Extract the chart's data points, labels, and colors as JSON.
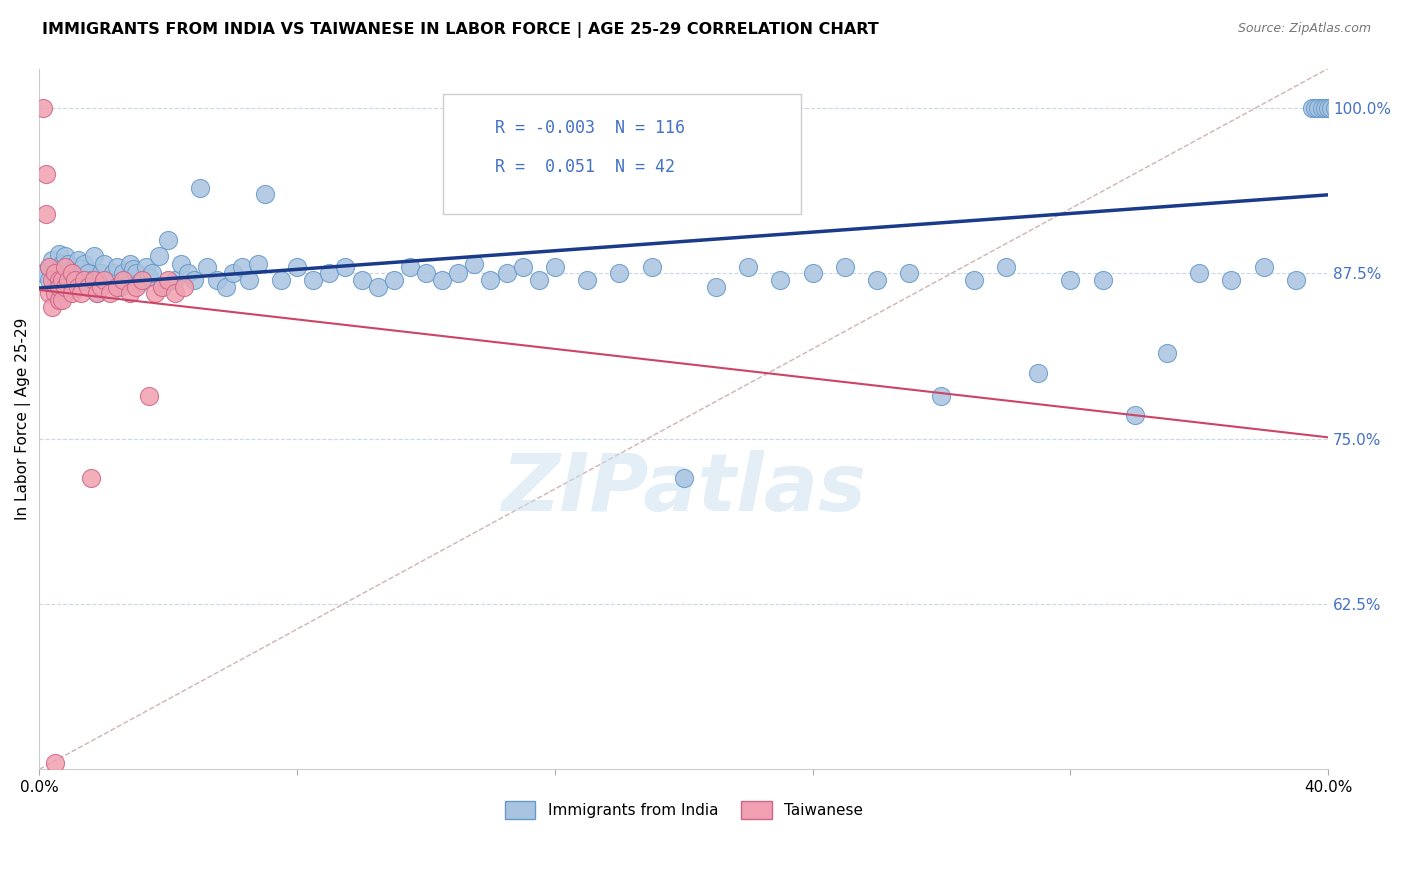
{
  "title": "IMMIGRANTS FROM INDIA VS TAIWANESE IN LABOR FORCE | AGE 25-29 CORRELATION CHART",
  "source": "Source: ZipAtlas.com",
  "ylabel": "In Labor Force | Age 25-29",
  "xlim": [
    0.0,
    0.4
  ],
  "ylim": [
    0.5,
    1.03
  ],
  "yticks": [
    0.625,
    0.75,
    0.875,
    1.0
  ],
  "ytick_labels": [
    "62.5%",
    "75.0%",
    "87.5%",
    "100.0%"
  ],
  "india_R": -0.003,
  "india_N": 116,
  "taiwan_R": 0.051,
  "taiwan_N": 42,
  "india_color": "#a8c4e0",
  "india_edge_color": "#6699cc",
  "taiwan_color": "#f0a0b0",
  "taiwan_edge_color": "#cc6688",
  "india_line_color": "#1a3a8a",
  "taiwan_line_color": "#cc4466",
  "diagonal_color": "#ccaaaa",
  "watermark": "ZIPatlas",
  "india_x": [
    0.001,
    0.003,
    0.003,
    0.004,
    0.005,
    0.005,
    0.006,
    0.006,
    0.007,
    0.007,
    0.008,
    0.008,
    0.008,
    0.009,
    0.009,
    0.01,
    0.01,
    0.011,
    0.011,
    0.012,
    0.012,
    0.013,
    0.013,
    0.014,
    0.015,
    0.016,
    0.017,
    0.018,
    0.019,
    0.02,
    0.022,
    0.023,
    0.024,
    0.025,
    0.026,
    0.027,
    0.028,
    0.029,
    0.03,
    0.031,
    0.033,
    0.034,
    0.035,
    0.037,
    0.038,
    0.04,
    0.042,
    0.044,
    0.046,
    0.048,
    0.05,
    0.052,
    0.055,
    0.058,
    0.06,
    0.063,
    0.065,
    0.068,
    0.07,
    0.075,
    0.08,
    0.085,
    0.09,
    0.095,
    0.1,
    0.105,
    0.11,
    0.115,
    0.12,
    0.125,
    0.13,
    0.135,
    0.14,
    0.145,
    0.15,
    0.155,
    0.16,
    0.17,
    0.18,
    0.19,
    0.2,
    0.21,
    0.22,
    0.23,
    0.24,
    0.25,
    0.26,
    0.27,
    0.28,
    0.29,
    0.3,
    0.31,
    0.32,
    0.33,
    0.34,
    0.35,
    0.36,
    0.37,
    0.38,
    0.39,
    0.395,
    0.396,
    0.397,
    0.398,
    0.399,
    0.4,
    0.401,
    0.402,
    0.403,
    0.404,
    0.405,
    0.406,
    0.407,
    0.408,
    0.409,
    0.41
  ],
  "india_y": [
    0.875,
    0.88,
    0.87,
    0.885,
    0.872,
    0.865,
    0.89,
    0.878,
    0.875,
    0.882,
    0.86,
    0.875,
    0.888,
    0.87,
    0.882,
    0.875,
    0.868,
    0.88,
    0.872,
    0.885,
    0.865,
    0.878,
    0.87,
    0.882,
    0.875,
    0.87,
    0.888,
    0.86,
    0.875,
    0.882,
    0.87,
    0.875,
    0.88,
    0.865,
    0.875,
    0.87,
    0.882,
    0.878,
    0.875,
    0.868,
    0.88,
    0.872,
    0.875,
    0.888,
    0.865,
    0.9,
    0.87,
    0.882,
    0.875,
    0.87,
    0.94,
    0.88,
    0.87,
    0.865,
    0.875,
    0.88,
    0.87,
    0.882,
    0.935,
    0.87,
    0.88,
    0.87,
    0.875,
    0.88,
    0.87,
    0.865,
    0.87,
    0.88,
    0.875,
    0.87,
    0.875,
    0.882,
    0.87,
    0.875,
    0.88,
    0.87,
    0.88,
    0.87,
    0.875,
    0.88,
    0.72,
    0.865,
    0.88,
    0.87,
    0.875,
    0.88,
    0.87,
    0.875,
    0.782,
    0.87,
    0.88,
    0.8,
    0.87,
    0.87,
    0.768,
    0.815,
    0.875,
    0.87,
    0.88,
    0.87,
    1.0,
    1.0,
    1.0,
    1.0,
    1.0,
    1.0,
    1.0,
    1.0,
    1.0,
    1.0,
    1.0,
    1.0,
    1.0,
    1.0,
    1.0,
    1.0
  ],
  "taiwan_x": [
    0.001,
    0.002,
    0.002,
    0.003,
    0.003,
    0.004,
    0.004,
    0.005,
    0.005,
    0.006,
    0.006,
    0.006,
    0.007,
    0.007,
    0.008,
    0.008,
    0.009,
    0.01,
    0.01,
    0.011,
    0.012,
    0.013,
    0.014,
    0.015,
    0.016,
    0.017,
    0.018,
    0.019,
    0.02,
    0.022,
    0.024,
    0.026,
    0.028,
    0.03,
    0.032,
    0.034,
    0.036,
    0.038,
    0.04,
    0.042,
    0.045,
    0.005
  ],
  "taiwan_y": [
    1.0,
    0.95,
    0.92,
    0.88,
    0.86,
    0.87,
    0.85,
    0.875,
    0.86,
    0.87,
    0.855,
    0.865,
    0.87,
    0.855,
    0.865,
    0.88,
    0.87,
    0.875,
    0.86,
    0.87,
    0.865,
    0.86,
    0.87,
    0.865,
    0.72,
    0.87,
    0.86,
    0.865,
    0.87,
    0.86,
    0.865,
    0.87,
    0.86,
    0.865,
    0.87,
    0.782,
    0.86,
    0.865,
    0.87,
    0.86,
    0.865,
    0.505
  ]
}
